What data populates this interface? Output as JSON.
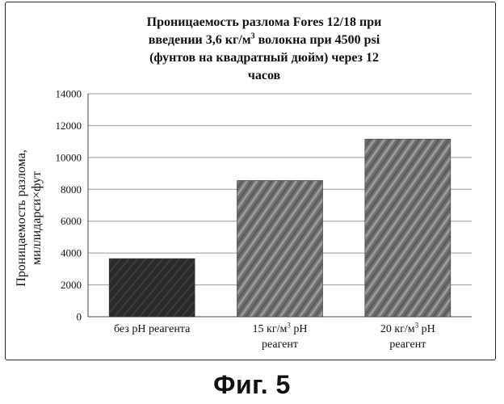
{
  "chart_data": {
    "type": "bar",
    "title": "Проницаемость разлома Fores 12/18 при введении 3,6 кг/м3 волокна при 4500 psi (фунтов на квадратный дюйм) через 12 часов",
    "title_lines": [
      "Проницаемость разлома Fores 12/18 при",
      "введении 3,6 кг/м3 волокна при 4500 psi",
      "(фунтов на квадратный дюйм) через 12",
      "часов"
    ],
    "ylabel": "Проницаемость разлома, миллидарси×фут",
    "ylabel_lines": [
      "Проницаемость разлома,",
      "миллидарси×фут"
    ],
    "xlabel": "",
    "categories": [
      "без рН реагента",
      "15 кг/м3 рН реагент",
      "20 кг/м3 рН реагент"
    ],
    "category_lines": [
      [
        "без рН реагента"
      ],
      [
        "15 кг/м3 рН",
        "реагент"
      ],
      [
        "20 кг/м3 рН",
        "реагент"
      ]
    ],
    "values": [
      3650,
      8550,
      11150
    ],
    "ylim": [
      0,
      14000
    ],
    "yticks": [
      0,
      2000,
      4000,
      6000,
      8000,
      10000,
      12000,
      14000
    ],
    "grid": true,
    "legend": "none",
    "bar_colors": [
      "#2b2b2b",
      "#6b6b6b",
      "#6b6b6b"
    ]
  },
  "caption": "Фиг. 5"
}
